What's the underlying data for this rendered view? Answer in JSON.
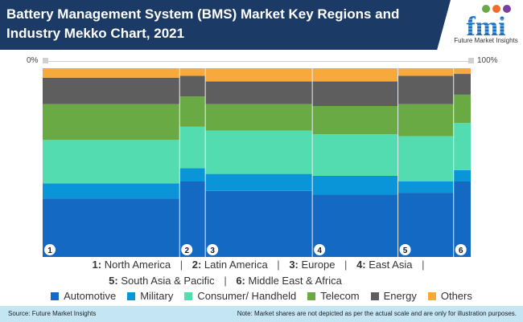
{
  "header": {
    "title": "Battery Management System (BMS) Market Key Regions and Industry Mekko Chart, 2021",
    "logo_text": "Future Market Insights"
  },
  "colors": {
    "header_bg": "#1c3a66",
    "footer_bg": "#c4e5f3"
  },
  "chart_data": {
    "type": "mekko",
    "title": "Battery Management System (BMS) Market Key Regions and Industry Mekko Chart, 2021",
    "x_axis_labels": {
      "min": "0%",
      "max": "100%"
    },
    "categories": [
      "1",
      "2",
      "3",
      "4",
      "5",
      "6"
    ],
    "category_names": [
      "North America",
      "Latin America",
      "Europe",
      "East Asia",
      "South Asia & Pacific",
      "Middle East & Africa"
    ],
    "category_widths": [
      32,
      6,
      25,
      20,
      13,
      4
    ],
    "series": [
      {
        "name": "Automotive",
        "color": "#1469c2",
        "values": [
          31,
          40,
          35,
          33,
          34,
          40
        ]
      },
      {
        "name": "Military",
        "color": "#0b95d9",
        "values": [
          8,
          7,
          9,
          10,
          6,
          6
        ]
      },
      {
        "name": "Consumer/ Handheld",
        "color": "#52dcb0",
        "values": [
          23,
          22,
          23,
          22,
          24,
          25
        ]
      },
      {
        "name": "Telecom",
        "color": "#6aaa44",
        "values": [
          19,
          16,
          14,
          15,
          17,
          15
        ]
      },
      {
        "name": "Energy",
        "color": "#5e5e5e",
        "values": [
          14,
          11,
          12,
          13,
          15,
          11
        ]
      },
      {
        "name": "Others",
        "color": "#f7a93b",
        "values": [
          5,
          4,
          7,
          7,
          4,
          3
        ]
      }
    ],
    "legend_position": "bottom"
  },
  "region_legend": {
    "line1": [
      {
        "num": "1:",
        "name": "North America"
      },
      {
        "num": "2:",
        "name": "Latin America"
      },
      {
        "num": "3:",
        "name": "Europe"
      },
      {
        "num": "4:",
        "name": "East Asia"
      }
    ],
    "line2": [
      {
        "num": "5:",
        "name": "South Asia & Pacific"
      },
      {
        "num": "6:",
        "name": "Middle East & Africa"
      }
    ],
    "separator": "|"
  },
  "footer": {
    "source": "Source: Future Market Insights",
    "note": "Note: Market shares are not depicted as per the actual scale and are only for illustration purposes."
  }
}
